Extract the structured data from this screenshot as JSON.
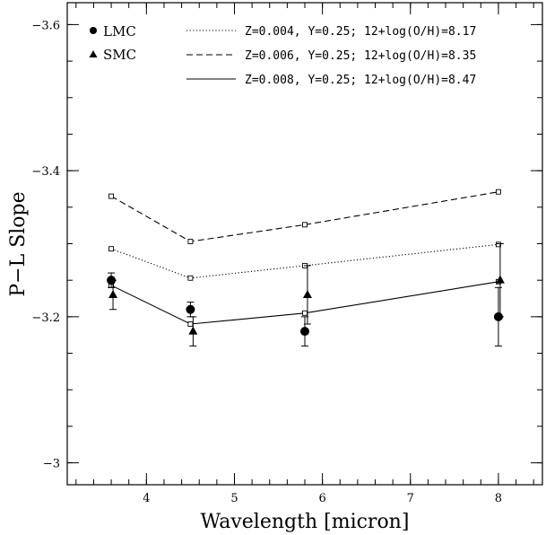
{
  "chart_data": {
    "type": "line",
    "xlabel": "Wavelength [micron]",
    "ylabel": "P−L Slope",
    "xlim": [
      3.1,
      8.5
    ],
    "ylim": [
      -3.63,
      -2.97
    ],
    "y_inverted": true,
    "x_ticks": [
      4,
      5,
      6,
      7,
      8
    ],
    "x_tick_labels": [
      "4",
      "5",
      "6",
      "7",
      "8"
    ],
    "x_minor_step": 0.2,
    "y_ticks": [
      -3.6,
      -3.4,
      -3.2,
      -3
    ],
    "y_tick_labels": [
      "−3.6",
      "−3.4",
      "−3.2",
      "−3"
    ],
    "y_minor_step": 0.05,
    "grid": false,
    "legend_position": "top",
    "observed_series": [
      {
        "name": "LMC",
        "marker": "circle",
        "x": [
          3.6,
          4.5,
          5.8,
          8.0
        ],
        "y": [
          -3.25,
          -3.21,
          -3.18,
          -3.2
        ],
        "yerr": [
          0.01,
          0.01,
          0.02,
          0.04
        ]
      },
      {
        "name": "SMC",
        "marker": "triangle",
        "x": [
          3.62,
          4.53,
          5.83,
          8.02
        ],
        "y": [
          -3.23,
          -3.18,
          -3.23,
          -3.25
        ],
        "yerr": [
          0.02,
          0.02,
          0.04,
          0.05
        ]
      }
    ],
    "model_series": [
      {
        "name": "Z=0.004, Y=0.25; 12+log(O/H)=8.17",
        "line_style": "dotted",
        "x": [
          3.6,
          4.5,
          5.8,
          8.0
        ],
        "y": [
          -3.293,
          -3.253,
          -3.27,
          -3.299
        ]
      },
      {
        "name": "Z=0.006, Y=0.25; 12+log(O/H)=8.35",
        "line_style": "dashed",
        "x": [
          3.6,
          4.5,
          5.8,
          8.0
        ],
        "y": [
          -3.365,
          -3.303,
          -3.326,
          -3.371
        ]
      },
      {
        "name": "Z=0.008, Y=0.25; 12+log(O/H)=8.47",
        "line_style": "solid",
        "x": [
          3.6,
          4.5,
          5.8,
          8.0
        ],
        "y": [
          -3.243,
          -3.19,
          -3.205,
          -3.248
        ]
      }
    ]
  }
}
